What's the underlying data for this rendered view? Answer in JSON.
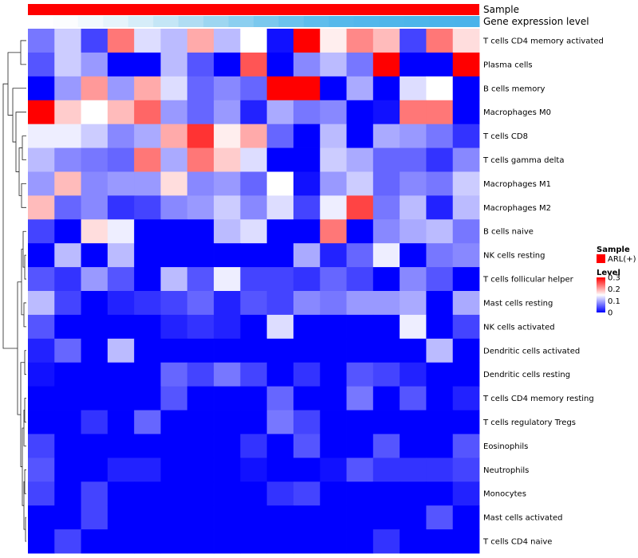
{
  "chart_data": {
    "type": "heatmap",
    "annotation_tracks": [
      {
        "name": "Sample",
        "color": "#ff0000"
      },
      {
        "name": "Gene expression level",
        "colors": [
          "#ffffff",
          "#fcfdfe",
          "#f2f9fd",
          "#e6f4fb",
          "#d6edf9",
          "#c4e6f6",
          "#b0ddf3",
          "#9dd6f1",
          "#8bcff0",
          "#7ac8ee",
          "#6bc2ed",
          "#5ebdec",
          "#56b9eb",
          "#52b7eb",
          "#4fb6ea",
          "#4db5ea",
          "#4bb4ea",
          "#4ab3ea"
        ]
      }
    ],
    "rows": [
      "T cells CD4 memory activated",
      "Plasma cells",
      "B cells memory",
      "Macrophages M0",
      "T cells CD8",
      "T cells gamma delta",
      "Macrophages M1",
      "Macrophages M2",
      "B cells naive",
      "NK cells resting",
      "T cells follicular helper",
      "Mast cells resting",
      "NK cells activated",
      "Dendritic cells activated",
      "Dendritic cells resting",
      "T cells CD4 memory resting",
      "T cells regulatory  Tregs",
      "Eosinophils",
      "Neutrophils",
      "Monocytes",
      "Mast cells activated",
      "T cells CD4 naive"
    ],
    "values": [
      [
        0.07,
        0.12,
        0.04,
        0.23,
        0.13,
        0.11,
        0.2,
        0.11,
        0.15,
        0.01,
        0.3,
        0.16,
        0.22,
        0.19,
        0.04,
        0.23,
        0.17
      ],
      [
        0.05,
        0.12,
        0.09,
        0.0,
        0.0,
        0.11,
        0.05,
        0.0,
        0.25,
        0.0,
        0.08,
        0.11,
        0.07,
        0.3,
        0.0,
        0.0,
        0.3
      ],
      [
        0.0,
        0.09,
        0.21,
        0.09,
        0.2,
        0.13,
        0.06,
        0.08,
        0.06,
        0.3,
        0.3,
        0.0,
        0.1,
        0.0,
        0.13,
        0.15,
        0.0
      ],
      [
        0.3,
        0.18,
        0.15,
        0.19,
        0.24,
        0.09,
        0.06,
        0.09,
        0.02,
        0.1,
        0.07,
        0.08,
        0.0,
        0.01,
        0.23,
        0.23,
        0.0
      ],
      [
        0.14,
        0.14,
        0.12,
        0.08,
        0.1,
        0.2,
        0.27,
        0.16,
        0.2,
        0.06,
        0.0,
        0.11,
        0.0,
        0.1,
        0.09,
        0.07,
        0.03
      ],
      [
        0.11,
        0.08,
        0.07,
        0.06,
        0.23,
        0.1,
        0.23,
        0.18,
        0.13,
        0.0,
        0.0,
        0.12,
        0.1,
        0.06,
        0.06,
        0.03,
        0.08
      ],
      [
        0.09,
        0.19,
        0.08,
        0.09,
        0.09,
        0.17,
        0.08,
        0.09,
        0.06,
        0.15,
        0.01,
        0.09,
        0.12,
        0.06,
        0.08,
        0.07,
        0.12
      ],
      [
        0.19,
        0.06,
        0.08,
        0.03,
        0.04,
        0.08,
        0.09,
        0.12,
        0.08,
        0.13,
        0.04,
        0.14,
        0.26,
        0.07,
        0.11,
        0.02,
        0.11
      ],
      [
        0.04,
        0.0,
        0.17,
        0.14,
        0.0,
        0.0,
        0.0,
        0.11,
        0.13,
        0.0,
        0.0,
        0.23,
        0.0,
        0.08,
        0.1,
        0.11,
        0.07
      ],
      [
        0.0,
        0.11,
        0.0,
        0.11,
        0.0,
        0.0,
        0.0,
        0.0,
        0.0,
        0.0,
        0.1,
        0.02,
        0.06,
        0.14,
        0.0,
        0.07,
        0.08
      ],
      [
        0.05,
        0.03,
        0.09,
        0.05,
        0.0,
        0.11,
        0.05,
        0.14,
        0.04,
        0.04,
        0.03,
        0.06,
        0.04,
        0.0,
        0.08,
        0.05,
        0.0
      ],
      [
        0.11,
        0.04,
        0.0,
        0.02,
        0.03,
        0.04,
        0.06,
        0.02,
        0.05,
        0.04,
        0.08,
        0.07,
        0.09,
        0.09,
        0.1,
        0.0,
        0.1
      ],
      [
        0.05,
        0.0,
        0.0,
        0.0,
        0.0,
        0.02,
        0.03,
        0.02,
        0.0,
        0.13,
        0.0,
        0.0,
        0.0,
        0.0,
        0.14,
        0.0,
        0.04
      ],
      [
        0.02,
        0.06,
        0.0,
        0.11,
        0.0,
        0.0,
        0.0,
        0.0,
        0.0,
        0.0,
        0.0,
        0.0,
        0.0,
        0.0,
        0.0,
        0.11,
        0.0
      ],
      [
        0.01,
        0.0,
        0.0,
        0.0,
        0.0,
        0.06,
        0.04,
        0.07,
        0.04,
        0.0,
        0.03,
        0.0,
        0.05,
        0.04,
        0.02,
        0.0,
        0.0
      ],
      [
        0.0,
        0.0,
        0.0,
        0.0,
        0.0,
        0.05,
        0.0,
        0.0,
        0.0,
        0.06,
        0.0,
        0.0,
        0.07,
        0.0,
        0.05,
        0.0,
        0.02
      ],
      [
        0.0,
        0.0,
        0.03,
        0.0,
        0.06,
        0.0,
        0.0,
        0.0,
        0.0,
        0.07,
        0.04,
        0.0,
        0.0,
        0.0,
        0.0,
        0.0,
        0.0
      ],
      [
        0.04,
        0.0,
        0.0,
        0.0,
        0.0,
        0.0,
        0.0,
        0.0,
        0.03,
        0.0,
        0.05,
        0.0,
        0.0,
        0.05,
        0.0,
        0.0,
        0.05
      ],
      [
        0.05,
        0.0,
        0.0,
        0.02,
        0.02,
        0.0,
        0.0,
        0.0,
        0.01,
        0.0,
        0.0,
        0.01,
        0.05,
        0.03,
        0.03,
        0.03,
        0.04
      ],
      [
        0.04,
        0.0,
        0.04,
        0.0,
        0.0,
        0.0,
        0.0,
        0.0,
        0.0,
        0.03,
        0.04,
        0.0,
        0.0,
        0.0,
        0.0,
        0.0,
        0.02
      ],
      [
        0.0,
        0.0,
        0.04,
        0.0,
        0.0,
        0.0,
        0.0,
        0.0,
        0.0,
        0.0,
        0.0,
        0.0,
        0.0,
        0.0,
        0.0,
        0.05,
        0.0
      ],
      [
        0.0,
        0.04,
        0.0,
        0.0,
        0.0,
        0.0,
        0.0,
        0.0,
        0.0,
        0.0,
        0.0,
        0.0,
        0.0,
        0.03,
        0.0,
        0.0,
        0.0
      ]
    ],
    "color_scale": {
      "min": 0,
      "mid": 0.15,
      "max": 0.3,
      "low": "#0000ff",
      "mid_color": "#ffffff",
      "high": "#ff0000"
    },
    "legend": {
      "sample_title": "Sample",
      "sample_item": "ARL(+)",
      "sample_color": "#ff0000",
      "level_title": "Level",
      "level_ticks": [
        "0.3",
        "0.2",
        "0.1",
        "0"
      ]
    }
  }
}
